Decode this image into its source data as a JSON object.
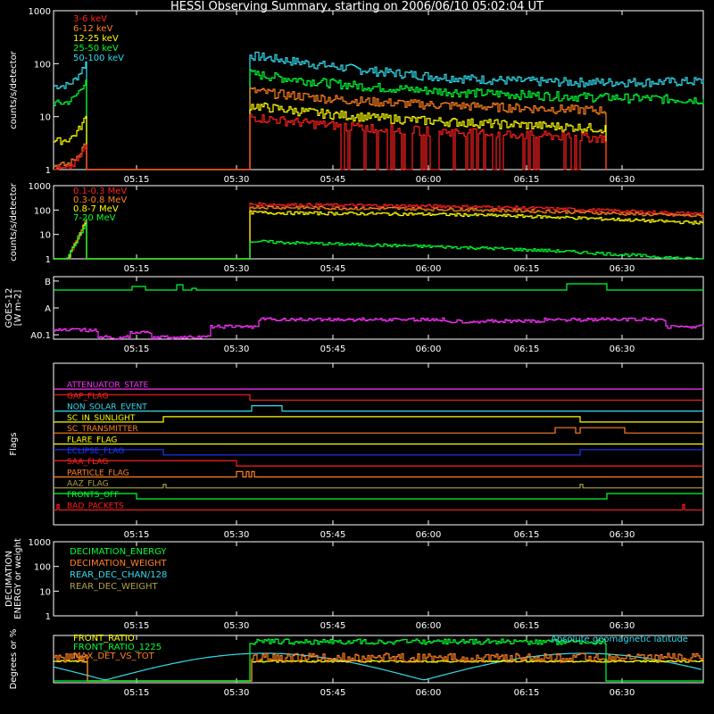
{
  "title": "HESSI Observing Summary, starting on 2006/06/10 05:02:04 UT",
  "colors": {
    "red": "#ff2020",
    "orange": "#ff8020",
    "yellow": "#ffff00",
    "green": "#00ff33",
    "cyan": "#33ddee",
    "magenta": "#ff33ff",
    "blue": "#2233ff",
    "olive": "#b0a040",
    "white": "#ffffff"
  },
  "chart_data": {
    "time_ticks": [
      "05:15",
      "05:30",
      "05:45",
      "06:00",
      "06:15",
      "06:30"
    ],
    "panels": [
      {
        "id": "counts-low",
        "ylabel": "counts/s/detector",
        "yticks": [
          "1",
          "10",
          "100",
          "1000"
        ],
        "legend": [
          {
            "name": "3-6 keV",
            "color": "red"
          },
          {
            "name": "6-12 keV",
            "color": "orange"
          },
          {
            "name": "12-25 keV",
            "color": "yellow"
          },
          {
            "name": "25-50 keV",
            "color": "green"
          },
          {
            "name": "50-100 keV",
            "color": "cyan"
          }
        ]
      },
      {
        "id": "counts-high",
        "ylabel": "counts/s/detector",
        "yticks": [
          "1",
          "10",
          "100",
          "1000"
        ],
        "legend": [
          {
            "name": "0.1-0.3 MeV",
            "color": "red"
          },
          {
            "name": "0.3-0.8 MeV",
            "color": "orange"
          },
          {
            "name": "0.8-7 MeV",
            "color": "yellow"
          },
          {
            "name": "7-20 MeV",
            "color": "green"
          }
        ]
      },
      {
        "id": "goes",
        "ylabel": "GOES-12\n[W m-2]",
        "yticks": [
          "A0.1",
          "A",
          "B"
        ]
      },
      {
        "id": "flags",
        "ylabel": "Flags",
        "flags": [
          {
            "name": "ATTENUATOR_STATE",
            "color": "magenta"
          },
          {
            "name": "GAP_FLAG",
            "color": "red"
          },
          {
            "name": "NON_SOLAR_EVENT",
            "color": "cyan"
          },
          {
            "name": "SC_IN_SUNLIGHT",
            "color": "yellow"
          },
          {
            "name": "SC_TRANSMITTER",
            "color": "orange"
          },
          {
            "name": "FLARE_FLAG",
            "color": "yellow"
          },
          {
            "name": "ECLIPSE_FLAG",
            "color": "blue"
          },
          {
            "name": "SAA_FLAG",
            "color": "red"
          },
          {
            "name": "PARTICLE_FLAG",
            "color": "orange"
          },
          {
            "name": "AAZ_FLAG",
            "color": "olive"
          },
          {
            "name": "FRONTS_OFF",
            "color": "green"
          },
          {
            "name": "BAD_PACKETS",
            "color": "red"
          }
        ]
      },
      {
        "id": "decimation",
        "ylabel": "DECIMATION\nENERGY or weight",
        "yticks": [
          "1",
          "10",
          "100",
          "1000"
        ],
        "legend": [
          {
            "name": "DECIMATION_ENERGY",
            "color": "green"
          },
          {
            "name": "DECIMATION_WEIGHT",
            "color": "orange"
          },
          {
            "name": "REAR_DEC_CHAN/128",
            "color": "cyan"
          },
          {
            "name": "REAR_DEC_WEIGHT",
            "color": "olive"
          }
        ]
      },
      {
        "id": "ratios",
        "ylabel": "Degrees or %",
        "legend": [
          {
            "name": "FRONT_RATIO",
            "color": "yellow"
          },
          {
            "name": "FRONT_RATIO_1225",
            "color": "green"
          },
          {
            "name": "MAX_DET_VS_TOT",
            "color": "orange"
          }
        ],
        "annotation": {
          "text": "Absolute geomagnetic latitude",
          "color": "cyan"
        }
      }
    ]
  }
}
